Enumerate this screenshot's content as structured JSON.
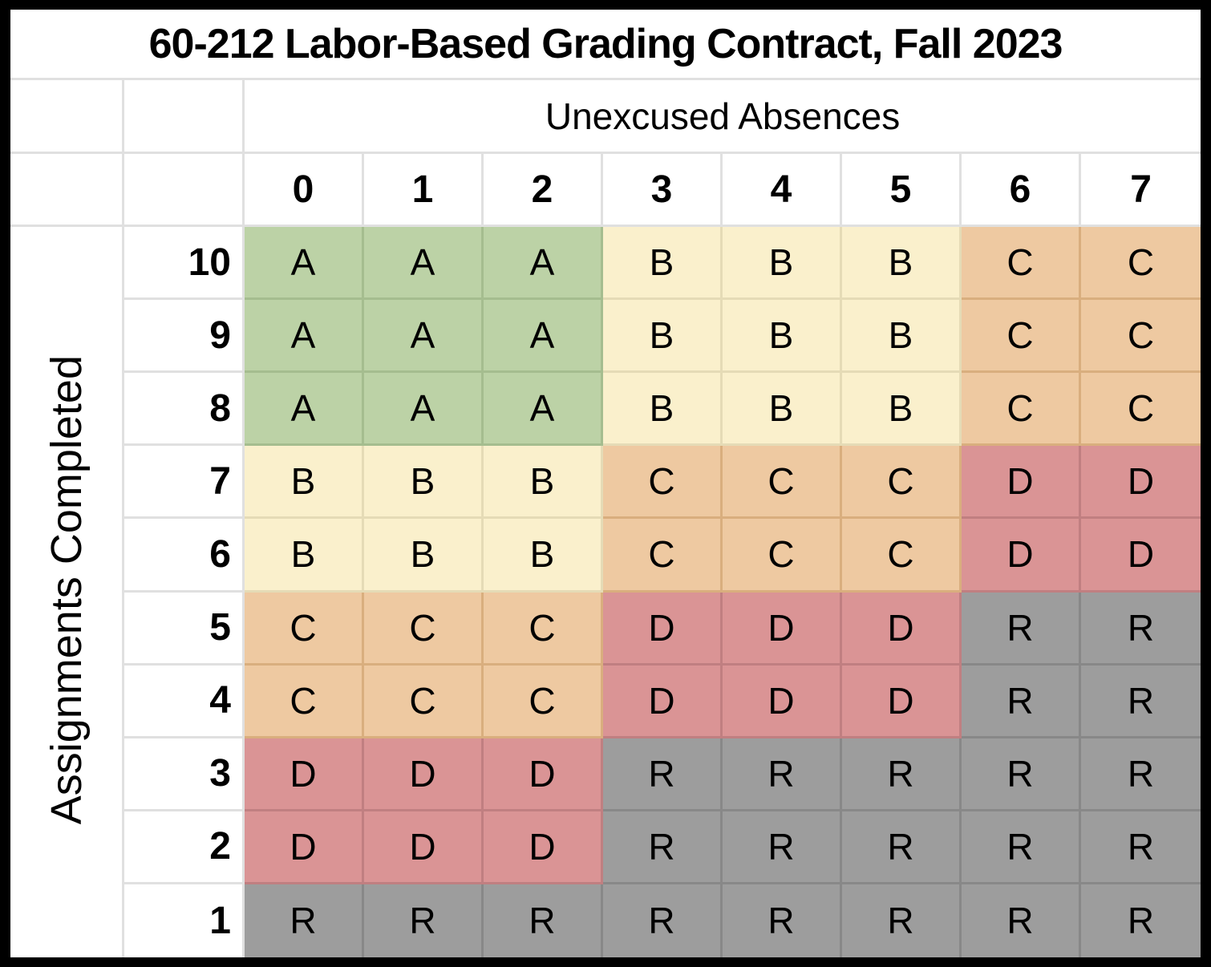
{
  "title": "60-212 Labor-Based Grading Contract, Fall 2023",
  "colors": {
    "frame": "#000000",
    "gridline": "#e0e0e0",
    "text": "#000000"
  },
  "chart_data": {
    "type": "heatmap",
    "title": "60-212 Labor-Based Grading Contract, Fall 2023",
    "xlabel": "Unexcused Absences",
    "ylabel": "Assignments Completed",
    "x": [
      "0",
      "1",
      "2",
      "3",
      "4",
      "5",
      "6",
      "7"
    ],
    "rows": [
      {
        "label": "10",
        "grades": [
          "A",
          "A",
          "A",
          "B",
          "B",
          "B",
          "C",
          "C"
        ]
      },
      {
        "label": "9",
        "grades": [
          "A",
          "A",
          "A",
          "B",
          "B",
          "B",
          "C",
          "C"
        ]
      },
      {
        "label": "8",
        "grades": [
          "A",
          "A",
          "A",
          "B",
          "B",
          "B",
          "C",
          "C"
        ]
      },
      {
        "label": "7",
        "grades": [
          "B",
          "B",
          "B",
          "C",
          "C",
          "C",
          "D",
          "D"
        ]
      },
      {
        "label": "6",
        "grades": [
          "B",
          "B",
          "B",
          "C",
          "C",
          "C",
          "D",
          "D"
        ]
      },
      {
        "label": "5",
        "grades": [
          "C",
          "C",
          "C",
          "D",
          "D",
          "D",
          "R",
          "R"
        ]
      },
      {
        "label": "4",
        "grades": [
          "C",
          "C",
          "C",
          "D",
          "D",
          "D",
          "R",
          "R"
        ]
      },
      {
        "label": "3",
        "grades": [
          "D",
          "D",
          "D",
          "R",
          "R",
          "R",
          "R",
          "R"
        ]
      },
      {
        "label": "2",
        "grades": [
          "D",
          "D",
          "D",
          "R",
          "R",
          "R",
          "R",
          "R"
        ]
      },
      {
        "label": "1",
        "grades": [
          "R",
          "R",
          "R",
          "R",
          "R",
          "R",
          "R",
          "R"
        ]
      }
    ],
    "grade_colors": {
      "A": {
        "fill": "#bcd2a6",
        "line": "#a5bd8f"
      },
      "B": {
        "fill": "#faf0cc",
        "line": "#e5dbb6"
      },
      "C": {
        "fill": "#eec9a1",
        "line": "#d9ae7e"
      },
      "D": {
        "fill": "#da9495",
        "line": "#c07f81"
      },
      "R": {
        "fill": "#9d9d9d",
        "line": "#888888"
      }
    }
  }
}
